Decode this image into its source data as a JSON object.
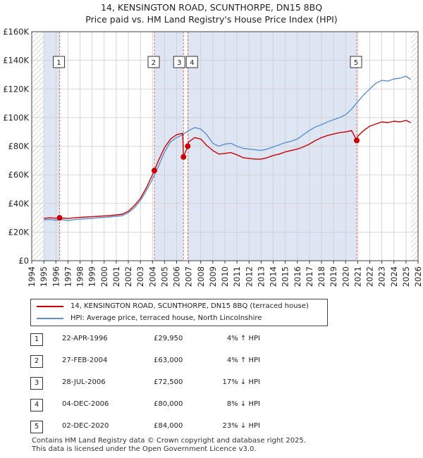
{
  "title": {
    "line1": "14, KENSINGTON ROAD, SCUNTHORPE, DN15 8BQ",
    "line2": "Price paid vs. HM Land Registry's House Price Index (HPI)"
  },
  "colors": {
    "property": "#cc0000",
    "hpi": "#5b8fd0",
    "shade": "#dfe6f3",
    "grid": "#cccccc",
    "vline": "#e07070"
  },
  "chart_data": {
    "type": "line",
    "title": "Price paid vs. HM Land Registry's House Price Index (HPI)",
    "xlabel": "",
    "ylabel": "",
    "xlim": [
      1994,
      2026
    ],
    "ylim": [
      0,
      160000
    ],
    "y_ticks": [
      {
        "value": 0,
        "label": "£0"
      },
      {
        "value": 20000,
        "label": "£20K"
      },
      {
        "value": 40000,
        "label": "£40K"
      },
      {
        "value": 60000,
        "label": "£60K"
      },
      {
        "value": 80000,
        "label": "£80K"
      },
      {
        "value": 100000,
        "label": "£100K"
      },
      {
        "value": 120000,
        "label": "£120K"
      },
      {
        "value": 140000,
        "label": "£140K"
      },
      {
        "value": 160000,
        "label": "£160K"
      }
    ],
    "x_ticks": [
      "1994",
      "1995",
      "1996",
      "1997",
      "1998",
      "1999",
      "2000",
      "2001",
      "2002",
      "2003",
      "2004",
      "2005",
      "2006",
      "2007",
      "2008",
      "2009",
      "2010",
      "2011",
      "2012",
      "2013",
      "2014",
      "2015",
      "2016",
      "2017",
      "2018",
      "2019",
      "2020",
      "2021",
      "2022",
      "2023",
      "2024",
      "2025",
      "2026"
    ],
    "shaded_ranges": [
      [
        1995.0,
        1996.31
      ],
      [
        1996.31,
        2004.16
      ],
      [
        2004.16,
        2006.57
      ],
      [
        2006.57,
        2006.92
      ],
      [
        2006.92,
        2020.92
      ],
      [
        2020.92,
        2025.4
      ]
    ],
    "hatched_ranges": [
      [
        1994.0,
        1995.0
      ],
      [
        2025.4,
        2026.0
      ]
    ],
    "sales": [
      {
        "id": "1",
        "x": 1996.31,
        "price": 29950
      },
      {
        "id": "2",
        "x": 2004.16,
        "price": 63000
      },
      {
        "id": "3",
        "x": 2006.57,
        "price": 72500
      },
      {
        "id": "4",
        "x": 2006.92,
        "price": 80000
      },
      {
        "id": "5",
        "x": 2020.92,
        "price": 84000
      }
    ],
    "series": [
      {
        "name": "HPI: Average price, terraced house, North Lincolnshire",
        "x": [
          1995.0,
          1995.5,
          1996.0,
          1996.5,
          1997.0,
          1997.5,
          1998.0,
          1998.5,
          1999.0,
          1999.5,
          2000.0,
          2000.5,
          2001.0,
          2001.5,
          2002.0,
          2002.5,
          2003.0,
          2003.5,
          2004.0,
          2004.5,
          2005.0,
          2005.5,
          2006.0,
          2006.5,
          2007.0,
          2007.5,
          2008.0,
          2008.5,
          2009.0,
          2009.5,
          2010.0,
          2010.5,
          2011.0,
          2011.5,
          2012.0,
          2012.5,
          2013.0,
          2013.5,
          2014.0,
          2014.5,
          2015.0,
          2015.5,
          2016.0,
          2016.5,
          2017.0,
          2017.5,
          2018.0,
          2018.5,
          2019.0,
          2019.5,
          2020.0,
          2020.5,
          2021.0,
          2021.5,
          2022.0,
          2022.5,
          2023.0,
          2023.5,
          2024.0,
          2024.5,
          2025.0,
          2025.4
        ],
        "values": [
          28500,
          28800,
          28300,
          28700,
          28000,
          28700,
          29000,
          29300,
          29600,
          30000,
          30300,
          30600,
          31000,
          31500,
          33500,
          37000,
          42000,
          49000,
          57000,
          66000,
          76000,
          83000,
          86000,
          88000,
          91000,
          93000,
          92000,
          88000,
          82000,
          80000,
          81500,
          82000,
          80000,
          78500,
          78000,
          77500,
          77000,
          78000,
          79500,
          81000,
          82500,
          83500,
          85000,
          88000,
          91000,
          93500,
          95000,
          97000,
          98500,
          100000,
          102000,
          106000,
          111000,
          116000,
          120000,
          124000,
          126000,
          125500,
          127000,
          127500,
          129000,
          126500
        ]
      },
      {
        "name": "14, KENSINGTON ROAD, SCUNTHORPE, DN15 8BQ (terraced house)",
        "x": [
          1995.0,
          1995.5,
          1996.0,
          1996.31,
          1996.5,
          1997.0,
          1997.5,
          1998.0,
          1998.5,
          1999.0,
          1999.5,
          2000.0,
          2000.5,
          2001.0,
          2001.5,
          2002.0,
          2002.5,
          2003.0,
          2003.5,
          2004.16,
          2004.5,
          2005.0,
          2005.5,
          2006.0,
          2006.5,
          2006.57,
          2006.92,
          2007.0,
          2007.5,
          2008.0,
          2008.5,
          2009.0,
          2009.5,
          2010.0,
          2010.5,
          2011.0,
          2011.5,
          2012.0,
          2012.5,
          2013.0,
          2013.5,
          2014.0,
          2014.5,
          2015.0,
          2015.5,
          2016.0,
          2016.5,
          2017.0,
          2017.5,
          2018.0,
          2018.5,
          2019.0,
          2019.5,
          2020.0,
          2020.5,
          2020.92,
          2021.0,
          2021.5,
          2022.0,
          2022.5,
          2023.0,
          2023.5,
          2024.0,
          2024.5,
          2025.0,
          2025.4
        ],
        "values": [
          29500,
          30000,
          29700,
          29950,
          29800,
          29500,
          30000,
          30300,
          30500,
          30700,
          31000,
          31300,
          31500,
          32000,
          32500,
          34500,
          38500,
          43500,
          51000,
          63000,
          70000,
          79000,
          85000,
          88000,
          89000,
          72500,
          80000,
          83000,
          86000,
          85000,
          80500,
          77000,
          74500,
          75000,
          75500,
          74000,
          72000,
          71500,
          71000,
          71000,
          72000,
          73500,
          74500,
          76000,
          77000,
          78000,
          79500,
          81500,
          84000,
          86000,
          87500,
          88500,
          89500,
          90000,
          91000,
          84000,
          87000,
          91000,
          94000,
          95500,
          97000,
          96500,
          97500,
          97000,
          98000,
          96500
        ]
      }
    ]
  },
  "legend": {
    "property_label": "14, KENSINGTON ROAD, SCUNTHORPE, DN15 8BQ (terraced house)",
    "hpi_label": "HPI: Average price, terraced house, North Lincolnshire"
  },
  "transactions": [
    {
      "id": "1",
      "date": "22-APR-1996",
      "price": "£29,950",
      "hpi": "4% ↑ HPI"
    },
    {
      "id": "2",
      "date": "27-FEB-2004",
      "price": "£63,000",
      "hpi": "4% ↑ HPI"
    },
    {
      "id": "3",
      "date": "28-JUL-2006",
      "price": "£72,500",
      "hpi": "17% ↓ HPI"
    },
    {
      "id": "4",
      "date": "04-DEC-2006",
      "price": "£80,000",
      "hpi": "8% ↓ HPI"
    },
    {
      "id": "5",
      "date": "02-DEC-2020",
      "price": "£84,000",
      "hpi": "23% ↓ HPI"
    }
  ],
  "footer": {
    "line1": "Contains HM Land Registry data © Crown copyright and database right 2025.",
    "line2": "This data is licensed under the Open Government Licence v3.0."
  }
}
